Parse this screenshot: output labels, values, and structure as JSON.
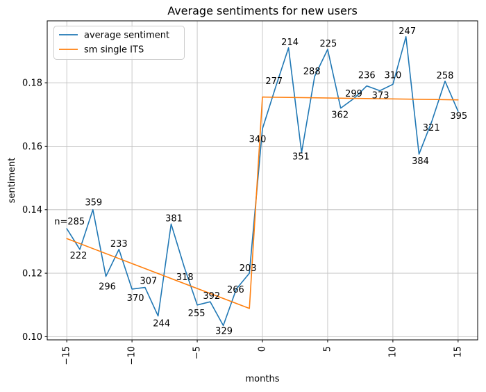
{
  "title": "Average sentiments for new users",
  "colors": {
    "series_blue": "#1f77b4",
    "series_orange": "#ff7f0e",
    "grid": "#c3c3c3",
    "spine": "#000000",
    "legend_border": "#cccccc"
  },
  "legend": {
    "position": "upper left",
    "items": [
      {
        "label": "average sentiment",
        "color": "#1f77b4"
      },
      {
        "label": "sm single ITS",
        "color": "#ff7f0e"
      }
    ]
  },
  "chart_data": {
    "type": "line",
    "title": "Average sentiments for new users",
    "xlabel": "months",
    "ylabel": "sentiment",
    "xlim": [
      -16.5,
      16.5
    ],
    "ylim": [
      0.099,
      0.1995
    ],
    "xticks": [
      -15,
      -10,
      -5,
      0,
      5,
      10,
      15
    ],
    "xtick_labels": [
      "−15",
      "−10",
      "−5",
      "0",
      "5",
      "10",
      "15"
    ],
    "yticks": [
      0.1,
      0.12,
      0.14,
      0.16,
      0.18
    ],
    "ytick_labels": [
      "0.10",
      "0.12",
      "0.14",
      "0.16",
      "0.18"
    ],
    "grid": true,
    "xtick_rotation": 90,
    "series": [
      {
        "name": "average sentiment",
        "color": "#1f77b4",
        "x": [
          -15,
          -14,
          -13,
          -12,
          -11,
          -10,
          -9,
          -8,
          -7,
          -6,
          -5,
          -4,
          -3,
          -2,
          -1,
          0,
          1,
          2,
          3,
          4,
          5,
          6,
          7,
          8,
          9,
          10,
          11,
          12,
          13,
          14,
          15
        ],
        "y": [
          0.134,
          0.1275,
          0.14,
          0.119,
          0.1275,
          0.115,
          0.1155,
          0.1065,
          0.1355,
          0.122,
          0.11,
          0.111,
          0.1035,
          0.115,
          0.12,
          0.1655,
          0.1785,
          0.191,
          0.158,
          0.182,
          0.1905,
          0.172,
          0.175,
          0.179,
          0.1775,
          0.1795,
          0.1945,
          0.1575,
          0.168,
          0.1805,
          0.171
        ],
        "n_counts": [
          285,
          222,
          359,
          296,
          233,
          370,
          307,
          244,
          381,
          318,
          255,
          392,
          329,
          266,
          203,
          340,
          277,
          214,
          351,
          288,
          225,
          362,
          299,
          236,
          373,
          310,
          247,
          384,
          321,
          258,
          395
        ],
        "annotation_labels": [
          "n=285",
          "222",
          "359",
          "296",
          "233",
          "370",
          "307",
          "244",
          "381",
          "318",
          "255",
          "392",
          "329",
          "266",
          "203",
          "340",
          "277",
          "214",
          "351",
          "288",
          "225",
          "362",
          "299",
          "236",
          "373",
          "310",
          "247",
          "384",
          "321",
          "258",
          "395"
        ],
        "annotation_offsets": [
          [
            4,
            -6
          ],
          [
            -2,
            13
          ],
          [
            1,
            -6
          ],
          [
            2,
            19
          ],
          [
            0,
            -4
          ],
          [
            5,
            17
          ],
          [
            5,
            -5
          ],
          [
            5,
            15
          ],
          [
            4,
            -4
          ],
          [
            1,
            19
          ],
          [
            -1,
            16
          ],
          [
            2,
            -4
          ],
          [
            1,
            12
          ],
          [
            -1,
            5
          ],
          [
            -2,
            -3
          ],
          [
            -7,
            19
          ],
          [
            -2,
            -5
          ],
          [
            2,
            -4
          ],
          [
            -1,
            10
          ],
          [
            -4,
            -3
          ],
          [
            1,
            -4
          ],
          [
            -1,
            14
          ],
          [
            0,
            -3
          ],
          [
            0,
            -11
          ],
          [
            1,
            11
          ],
          [
            0,
            -9
          ],
          [
            2,
            -4
          ],
          [
            2,
            14
          ],
          [
            -1,
            14
          ],
          [
            0,
            -4
          ],
          [
            1,
            11
          ]
        ]
      },
      {
        "name": "sm single ITS",
        "color": "#ff7f0e",
        "x": [
          -15,
          -1,
          0,
          15
        ],
        "y": [
          0.1309,
          0.1089,
          0.1755,
          0.1746
        ]
      }
    ]
  }
}
